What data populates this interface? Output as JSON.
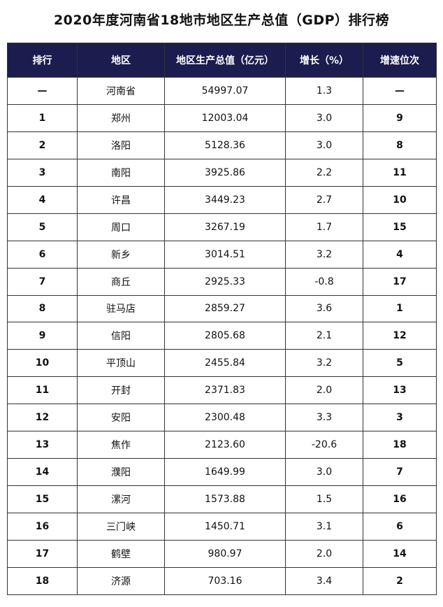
{
  "title": "2020年度河南省18地市地区生产总值（GDP）排行榜",
  "colors": {
    "header_bg": "#1c1c4e",
    "header_text": "#ffffff",
    "rank_text": "#e01414",
    "speed_rank_text": "#12309a"
  },
  "table": {
    "headers": [
      "排行",
      "地区",
      "地区生产总值（亿元）",
      "增长（%）",
      "增速位次"
    ],
    "rows": [
      {
        "rank": "—",
        "region": "河南省",
        "gdp": "54997.07",
        "growth": "1.3",
        "speed_rank": "—"
      },
      {
        "rank": "1",
        "region": "郑州",
        "gdp": "12003.04",
        "growth": "3.0",
        "speed_rank": "9"
      },
      {
        "rank": "2",
        "region": "洛阳",
        "gdp": "5128.36",
        "growth": "3.0",
        "speed_rank": "8"
      },
      {
        "rank": "3",
        "region": "南阳",
        "gdp": "3925.86",
        "growth": "2.2",
        "speed_rank": "11"
      },
      {
        "rank": "4",
        "region": "许昌",
        "gdp": "3449.23",
        "growth": "2.7",
        "speed_rank": "10"
      },
      {
        "rank": "5",
        "region": "周口",
        "gdp": "3267.19",
        "growth": "1.7",
        "speed_rank": "15"
      },
      {
        "rank": "6",
        "region": "新乡",
        "gdp": "3014.51",
        "growth": "3.2",
        "speed_rank": "4"
      },
      {
        "rank": "7",
        "region": "商丘",
        "gdp": "2925.33",
        "growth": "-0.8",
        "speed_rank": "17"
      },
      {
        "rank": "8",
        "region": "驻马店",
        "gdp": "2859.27",
        "growth": "3.6",
        "speed_rank": "1"
      },
      {
        "rank": "9",
        "region": "信阳",
        "gdp": "2805.68",
        "growth": "2.1",
        "speed_rank": "12"
      },
      {
        "rank": "10",
        "region": "平顶山",
        "gdp": "2455.84",
        "growth": "3.2",
        "speed_rank": "5"
      },
      {
        "rank": "11",
        "region": "开封",
        "gdp": "2371.83",
        "growth": "2.0",
        "speed_rank": "13"
      },
      {
        "rank": "12",
        "region": "安阳",
        "gdp": "2300.48",
        "growth": "3.3",
        "speed_rank": "3"
      },
      {
        "rank": "13",
        "region": "焦作",
        "gdp": "2123.60",
        "growth": "-20.6",
        "speed_rank": "18"
      },
      {
        "rank": "14",
        "region": "濮阳",
        "gdp": "1649.99",
        "growth": "3.0",
        "speed_rank": "7"
      },
      {
        "rank": "15",
        "region": "漯河",
        "gdp": "1573.88",
        "growth": "1.5",
        "speed_rank": "16"
      },
      {
        "rank": "16",
        "region": "三门峡",
        "gdp": "1450.71",
        "growth": "3.1",
        "speed_rank": "6"
      },
      {
        "rank": "17",
        "region": "鹤壁",
        "gdp": "980.97",
        "growth": "2.0",
        "speed_rank": "14"
      },
      {
        "rank": "18",
        "region": "济源",
        "gdp": "703.16",
        "growth": "3.4",
        "speed_rank": "2"
      }
    ]
  }
}
